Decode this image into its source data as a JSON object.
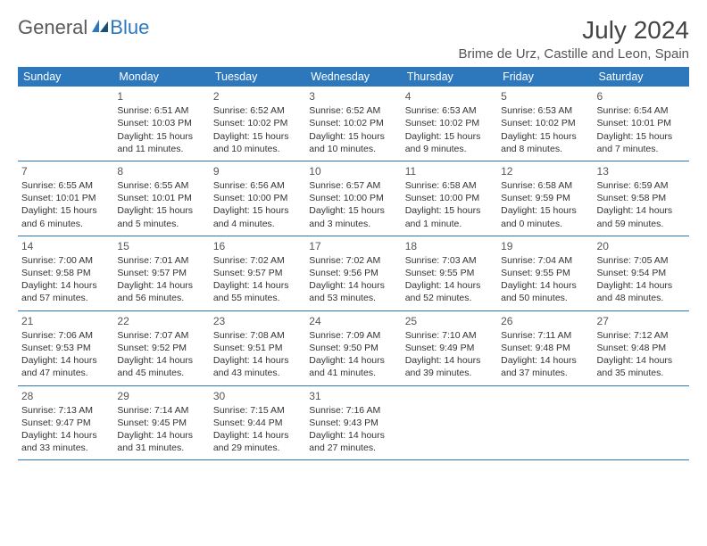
{
  "brand": {
    "word1": "General",
    "word2": "Blue"
  },
  "title": "July 2024",
  "location": "Brime de Urz, Castille and Leon, Spain",
  "colors": {
    "header_bg": "#2d78bd",
    "header_fg": "#ffffff",
    "border": "#2d78bd"
  },
  "dayHeaders": [
    "Sunday",
    "Monday",
    "Tuesday",
    "Wednesday",
    "Thursday",
    "Friday",
    "Saturday"
  ],
  "weeks": [
    [
      null,
      {
        "n": "1",
        "sr": "Sunrise: 6:51 AM",
        "ss": "Sunset: 10:03 PM",
        "dl1": "Daylight: 15 hours",
        "dl2": "and 11 minutes."
      },
      {
        "n": "2",
        "sr": "Sunrise: 6:52 AM",
        "ss": "Sunset: 10:02 PM",
        "dl1": "Daylight: 15 hours",
        "dl2": "and 10 minutes."
      },
      {
        "n": "3",
        "sr": "Sunrise: 6:52 AM",
        "ss": "Sunset: 10:02 PM",
        "dl1": "Daylight: 15 hours",
        "dl2": "and 10 minutes."
      },
      {
        "n": "4",
        "sr": "Sunrise: 6:53 AM",
        "ss": "Sunset: 10:02 PM",
        "dl1": "Daylight: 15 hours",
        "dl2": "and 9 minutes."
      },
      {
        "n": "5",
        "sr": "Sunrise: 6:53 AM",
        "ss": "Sunset: 10:02 PM",
        "dl1": "Daylight: 15 hours",
        "dl2": "and 8 minutes."
      },
      {
        "n": "6",
        "sr": "Sunrise: 6:54 AM",
        "ss": "Sunset: 10:01 PM",
        "dl1": "Daylight: 15 hours",
        "dl2": "and 7 minutes."
      }
    ],
    [
      {
        "n": "7",
        "sr": "Sunrise: 6:55 AM",
        "ss": "Sunset: 10:01 PM",
        "dl1": "Daylight: 15 hours",
        "dl2": "and 6 minutes."
      },
      {
        "n": "8",
        "sr": "Sunrise: 6:55 AM",
        "ss": "Sunset: 10:01 PM",
        "dl1": "Daylight: 15 hours",
        "dl2": "and 5 minutes."
      },
      {
        "n": "9",
        "sr": "Sunrise: 6:56 AM",
        "ss": "Sunset: 10:00 PM",
        "dl1": "Daylight: 15 hours",
        "dl2": "and 4 minutes."
      },
      {
        "n": "10",
        "sr": "Sunrise: 6:57 AM",
        "ss": "Sunset: 10:00 PM",
        "dl1": "Daylight: 15 hours",
        "dl2": "and 3 minutes."
      },
      {
        "n": "11",
        "sr": "Sunrise: 6:58 AM",
        "ss": "Sunset: 10:00 PM",
        "dl1": "Daylight: 15 hours",
        "dl2": "and 1 minute."
      },
      {
        "n": "12",
        "sr": "Sunrise: 6:58 AM",
        "ss": "Sunset: 9:59 PM",
        "dl1": "Daylight: 15 hours",
        "dl2": "and 0 minutes."
      },
      {
        "n": "13",
        "sr": "Sunrise: 6:59 AM",
        "ss": "Sunset: 9:58 PM",
        "dl1": "Daylight: 14 hours",
        "dl2": "and 59 minutes."
      }
    ],
    [
      {
        "n": "14",
        "sr": "Sunrise: 7:00 AM",
        "ss": "Sunset: 9:58 PM",
        "dl1": "Daylight: 14 hours",
        "dl2": "and 57 minutes."
      },
      {
        "n": "15",
        "sr": "Sunrise: 7:01 AM",
        "ss": "Sunset: 9:57 PM",
        "dl1": "Daylight: 14 hours",
        "dl2": "and 56 minutes."
      },
      {
        "n": "16",
        "sr": "Sunrise: 7:02 AM",
        "ss": "Sunset: 9:57 PM",
        "dl1": "Daylight: 14 hours",
        "dl2": "and 55 minutes."
      },
      {
        "n": "17",
        "sr": "Sunrise: 7:02 AM",
        "ss": "Sunset: 9:56 PM",
        "dl1": "Daylight: 14 hours",
        "dl2": "and 53 minutes."
      },
      {
        "n": "18",
        "sr": "Sunrise: 7:03 AM",
        "ss": "Sunset: 9:55 PM",
        "dl1": "Daylight: 14 hours",
        "dl2": "and 52 minutes."
      },
      {
        "n": "19",
        "sr": "Sunrise: 7:04 AM",
        "ss": "Sunset: 9:55 PM",
        "dl1": "Daylight: 14 hours",
        "dl2": "and 50 minutes."
      },
      {
        "n": "20",
        "sr": "Sunrise: 7:05 AM",
        "ss": "Sunset: 9:54 PM",
        "dl1": "Daylight: 14 hours",
        "dl2": "and 48 minutes."
      }
    ],
    [
      {
        "n": "21",
        "sr": "Sunrise: 7:06 AM",
        "ss": "Sunset: 9:53 PM",
        "dl1": "Daylight: 14 hours",
        "dl2": "and 47 minutes."
      },
      {
        "n": "22",
        "sr": "Sunrise: 7:07 AM",
        "ss": "Sunset: 9:52 PM",
        "dl1": "Daylight: 14 hours",
        "dl2": "and 45 minutes."
      },
      {
        "n": "23",
        "sr": "Sunrise: 7:08 AM",
        "ss": "Sunset: 9:51 PM",
        "dl1": "Daylight: 14 hours",
        "dl2": "and 43 minutes."
      },
      {
        "n": "24",
        "sr": "Sunrise: 7:09 AM",
        "ss": "Sunset: 9:50 PM",
        "dl1": "Daylight: 14 hours",
        "dl2": "and 41 minutes."
      },
      {
        "n": "25",
        "sr": "Sunrise: 7:10 AM",
        "ss": "Sunset: 9:49 PM",
        "dl1": "Daylight: 14 hours",
        "dl2": "and 39 minutes."
      },
      {
        "n": "26",
        "sr": "Sunrise: 7:11 AM",
        "ss": "Sunset: 9:48 PM",
        "dl1": "Daylight: 14 hours",
        "dl2": "and 37 minutes."
      },
      {
        "n": "27",
        "sr": "Sunrise: 7:12 AM",
        "ss": "Sunset: 9:48 PM",
        "dl1": "Daylight: 14 hours",
        "dl2": "and 35 minutes."
      }
    ],
    [
      {
        "n": "28",
        "sr": "Sunrise: 7:13 AM",
        "ss": "Sunset: 9:47 PM",
        "dl1": "Daylight: 14 hours",
        "dl2": "and 33 minutes."
      },
      {
        "n": "29",
        "sr": "Sunrise: 7:14 AM",
        "ss": "Sunset: 9:45 PM",
        "dl1": "Daylight: 14 hours",
        "dl2": "and 31 minutes."
      },
      {
        "n": "30",
        "sr": "Sunrise: 7:15 AM",
        "ss": "Sunset: 9:44 PM",
        "dl1": "Daylight: 14 hours",
        "dl2": "and 29 minutes."
      },
      {
        "n": "31",
        "sr": "Sunrise: 7:16 AM",
        "ss": "Sunset: 9:43 PM",
        "dl1": "Daylight: 14 hours",
        "dl2": "and 27 minutes."
      },
      null,
      null,
      null
    ]
  ]
}
